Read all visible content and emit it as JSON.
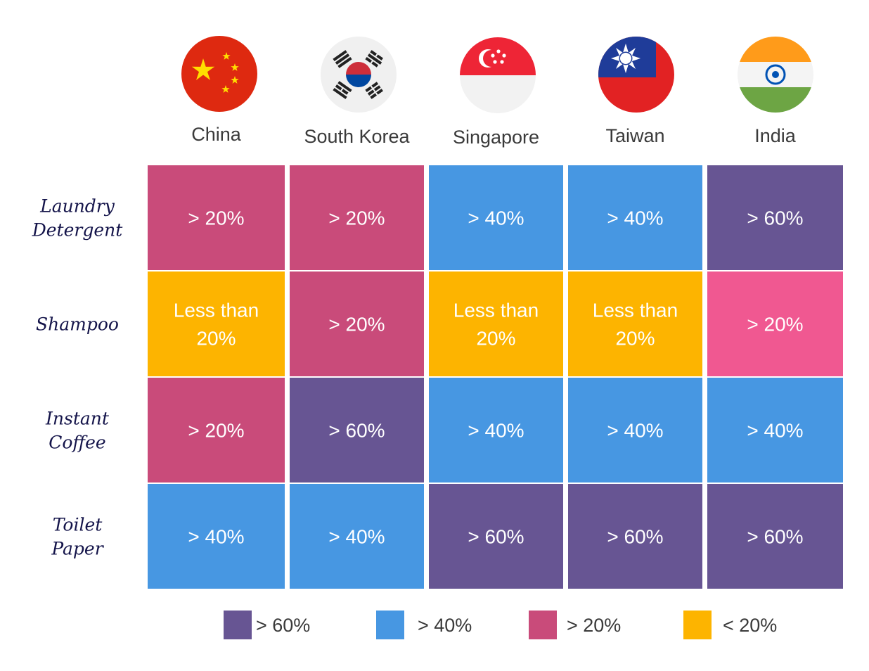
{
  "chart_data": {
    "type": "heatmap",
    "title": "",
    "columns": [
      "China",
      "South Korea",
      "Singapore",
      "Taiwan",
      "India"
    ],
    "rows": [
      {
        "label_lines": [
          "Laundry",
          "Detergent"
        ],
        "values": [
          "> 20%",
          "> 20%",
          "> 40%",
          "> 40%",
          "> 60%"
        ]
      },
      {
        "label_lines": [
          "Shampoo"
        ],
        "values": [
          "Less than 20%",
          "> 20%",
          "Less than 20%",
          "Less than 20%",
          "> 20%"
        ]
      },
      {
        "label_lines": [
          "Instant",
          "Coffee"
        ],
        "values": [
          "> 20%",
          "> 60%",
          "> 40%",
          "> 40%",
          "> 40%"
        ]
      },
      {
        "label_lines": [
          "Toilet",
          "Paper"
        ],
        "values": [
          "> 40%",
          "> 40%",
          "> 60%",
          "> 60%",
          "> 60%"
        ]
      }
    ],
    "cell_colors": [
      [
        "#c94b7a",
        "#c94b7a",
        "#4797e2",
        "#4797e2",
        "#675593"
      ],
      [
        "#fdb400",
        "#c94b7a",
        "#fdb400",
        "#fdb400",
        "#f05891"
      ],
      [
        "#c94b7a",
        "#675593",
        "#4797e2",
        "#4797e2",
        "#4797e2"
      ],
      [
        "#4797e2",
        "#4797e2",
        "#675593",
        "#675593",
        "#675593"
      ]
    ],
    "legend": {
      "placement": "bottom",
      "items": [
        {
          "label": "> 60%",
          "color": "#675593"
        },
        {
          "label": "> 40%",
          "color": "#4797e2"
        },
        {
          "label": "> 20%",
          "color": "#c94b7a"
        },
        {
          "label": "< 20%",
          "color": "#fdb400"
        }
      ]
    },
    "flag_icons": [
      "china-flag-icon",
      "south-korea-flag-icon",
      "singapore-flag-icon",
      "taiwan-flag-icon",
      "india-flag-icon"
    ]
  }
}
